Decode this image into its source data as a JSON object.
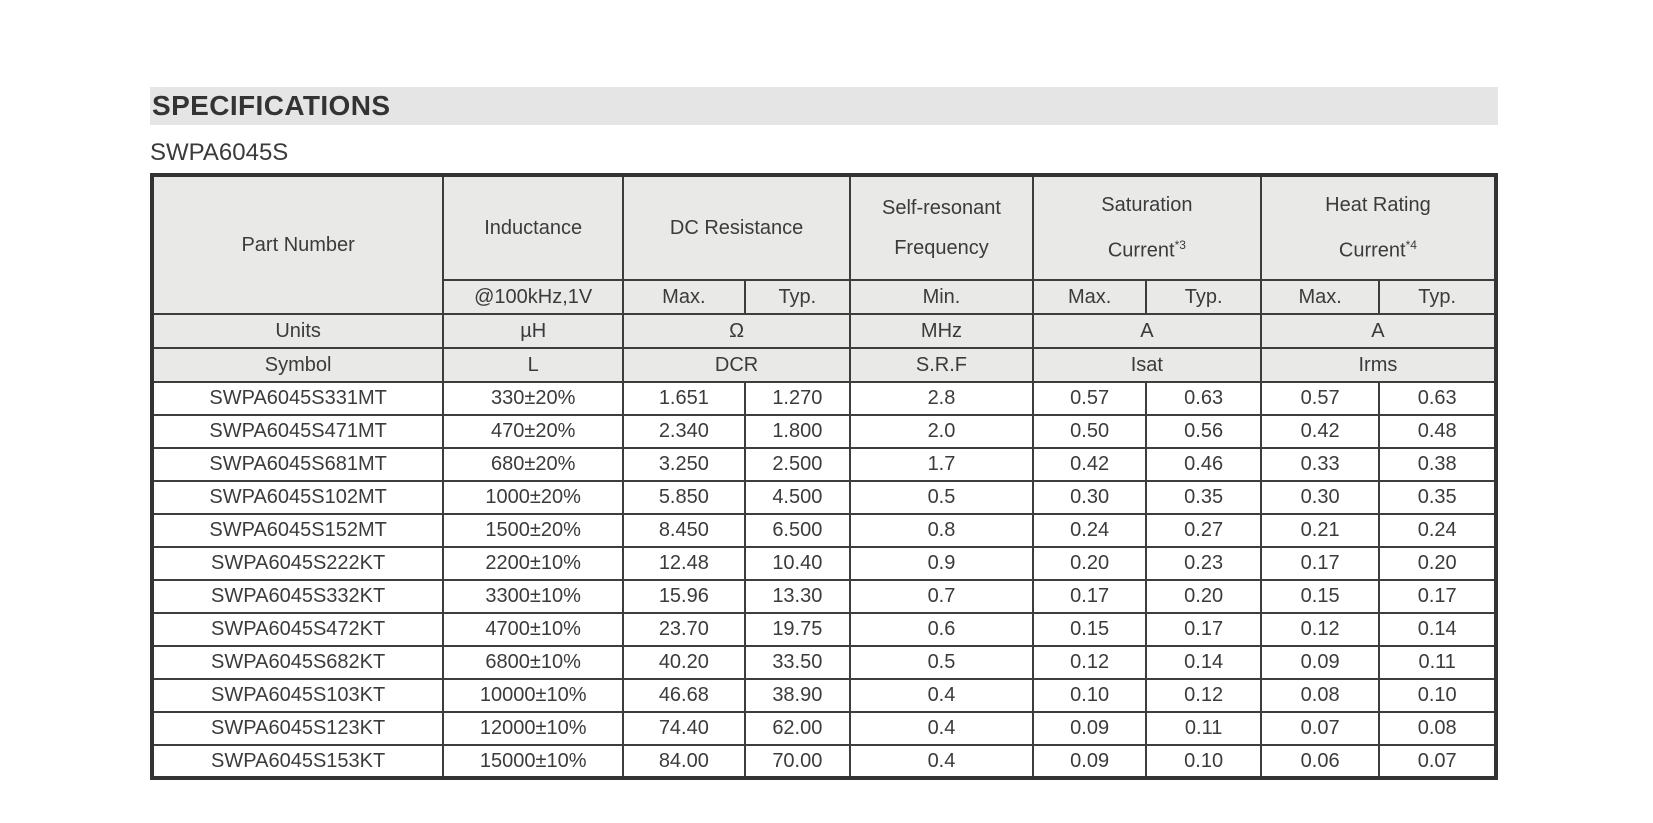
{
  "page": {
    "section_title": "SPECIFICATIONS",
    "part_series": "SWPA6045S"
  },
  "colors": {
    "title_bar_bg": "#e5e5e5",
    "table_header_bg": "#e9e9e8",
    "border": "#3d3d3d",
    "text": "#3b3b3b"
  },
  "table": {
    "header": {
      "part_number": "Part Number",
      "inductance": "Inductance",
      "dc_resistance": "DC Resistance",
      "self_resonant": {
        "line1": "Self-resonant",
        "line2": "Frequency"
      },
      "saturation": {
        "line1": "Saturation",
        "line2": "Current",
        "sup": "*3"
      },
      "heat_rating": {
        "line1": "Heat Rating",
        "line2": "Current",
        "sup": "*4"
      },
      "sub_headers": [
        "@100kHz,1V",
        "Max.",
        "Typ.",
        "Min.",
        "Max.",
        "Typ.",
        "Max.",
        "Typ."
      ]
    },
    "units_row": {
      "label": "Units",
      "inductance": "µH",
      "dc_resistance": "Ω",
      "srf": "MHz",
      "isat": "A",
      "irms": "A"
    },
    "symbol_row": {
      "label": "Symbol",
      "inductance": "L",
      "dc_resistance": "DCR",
      "srf": "S.R.F",
      "isat": "Isat",
      "irms": "Irms"
    },
    "rows": [
      [
        "SWPA6045S331MT",
        "330±20%",
        "1.651",
        "1.270",
        "2.8",
        "0.57",
        "0.63",
        "0.57",
        "0.63"
      ],
      [
        "SWPA6045S471MT",
        "470±20%",
        "2.340",
        "1.800",
        "2.0",
        "0.50",
        "0.56",
        "0.42",
        "0.48"
      ],
      [
        "SWPA6045S681MT",
        "680±20%",
        "3.250",
        "2.500",
        "1.7",
        "0.42",
        "0.46",
        "0.33",
        "0.38"
      ],
      [
        "SWPA6045S102MT",
        "1000±20%",
        "5.850",
        "4.500",
        "0.5",
        "0.30",
        "0.35",
        "0.30",
        "0.35"
      ],
      [
        "SWPA6045S152MT",
        "1500±20%",
        "8.450",
        "6.500",
        "0.8",
        "0.24",
        "0.27",
        "0.21",
        "0.24"
      ],
      [
        "SWPA6045S222KT",
        "2200±10%",
        "12.48",
        "10.40",
        "0.9",
        "0.20",
        "0.23",
        "0.17",
        "0.20"
      ],
      [
        "SWPA6045S332KT",
        "3300±10%",
        "15.96",
        "13.30",
        "0.7",
        "0.17",
        "0.20",
        "0.15",
        "0.17"
      ],
      [
        "SWPA6045S472KT",
        "4700±10%",
        "23.70",
        "19.75",
        "0.6",
        "0.15",
        "0.17",
        "0.12",
        "0.14"
      ],
      [
        "SWPA6045S682KT",
        "6800±10%",
        "40.20",
        "33.50",
        "0.5",
        "0.12",
        "0.14",
        "0.09",
        "0.11"
      ],
      [
        "SWPA6045S103KT",
        "10000±10%",
        "46.68",
        "38.90",
        "0.4",
        "0.10",
        "0.12",
        "0.08",
        "0.10"
      ],
      [
        "SWPA6045S123KT",
        "12000±10%",
        "74.40",
        "62.00",
        "0.4",
        "0.09",
        "0.11",
        "0.07",
        "0.08"
      ],
      [
        "SWPA6045S153KT",
        "15000±10%",
        "84.00",
        "70.00",
        "0.4",
        "0.09",
        "0.10",
        "0.06",
        "0.07"
      ]
    ]
  }
}
